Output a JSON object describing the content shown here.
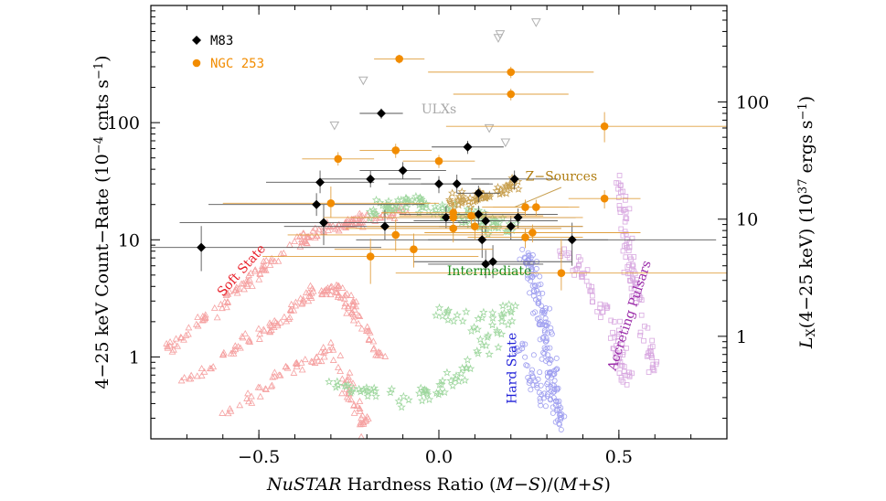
{
  "chart_data": {
    "type": "scatter",
    "xlabel_parts": [
      {
        "text": "NuSTAR",
        "italic": true
      },
      {
        "text": " Hardness Ratio (",
        "italic": false
      },
      {
        "text": "M",
        "italic": true
      },
      {
        "text": "−",
        "italic": false
      },
      {
        "text": "S",
        "italic": true
      },
      {
        "text": ")/(",
        "italic": false
      },
      {
        "text": "M",
        "italic": true
      },
      {
        "text": "+",
        "italic": false
      },
      {
        "text": "S",
        "italic": true
      },
      {
        "text": ")",
        "italic": false
      }
    ],
    "ylabel": "4−25 keV Count−Rate (10",
    "ylabel_exp1": "−4",
    "ylabel_mid": " cnts s",
    "ylabel_exp2": "−1",
    "ylabel_end": ")",
    "y2label_L": "L",
    "y2label_sub": "X",
    "y2label_mid": "(4−25 keV) (10",
    "y2label_exp1": "37",
    "y2label_mid2": " ergs s",
    "y2label_exp2": "−1",
    "y2label_end": ")",
    "xlim": [
      -0.8,
      0.8
    ],
    "ylim": [
      0.2,
      1000
    ],
    "yscale": "log",
    "x_ticks": [
      {
        "value": -0.5,
        "label": "−0.5"
      },
      {
        "value": 0.0,
        "label": "0.0"
      },
      {
        "value": 0.5,
        "label": "0.5"
      }
    ],
    "y_ticks": [
      {
        "value": 1,
        "label": "1"
      },
      {
        "value": 10,
        "label": "10"
      },
      {
        "value": 100,
        "label": "100"
      }
    ],
    "y2_ticks": [
      {
        "value": 1.5,
        "label": "1"
      },
      {
        "value": 15,
        "label": "10"
      },
      {
        "value": 150,
        "label": "100"
      }
    ],
    "legend": {
      "position": "top-left",
      "entries": [
        {
          "name": "M83",
          "marker": "diamond",
          "color": "#000000"
        },
        {
          "name": "NGC 253",
          "marker": "circle",
          "color": "#f28c00"
        }
      ]
    },
    "colors": {
      "m83": "#000000",
      "ngc253": "#f28c00",
      "ngc253_err": "#e0a040",
      "soft": "#f5a0a0",
      "intermediate": "#9fd79f",
      "hard": "#a0a0f0",
      "pulsars": "#d8a8e0",
      "zsources": "#c8a050",
      "ulx": "#b0b0b0"
    },
    "region_labels": [
      {
        "text": "Soft State",
        "x": -0.54,
        "y": 5.2,
        "rotate": -48,
        "color": "#e8202a"
      },
      {
        "text": "Intermediate",
        "x": 0.14,
        "y": 5.0,
        "rotate": 0,
        "color": "#1e8e1e"
      },
      {
        "text": "Hard State",
        "x": 0.215,
        "y": 0.8,
        "rotate": -90,
        "color": "#2020d8"
      },
      {
        "text": "Accreting Pulsars",
        "x": 0.54,
        "y": 2.2,
        "rotate": -72,
        "color": "#9a2aa8"
      },
      {
        "text": "Z−Sources",
        "x": 0.34,
        "y": 32,
        "rotate": 0,
        "color": "#b07d10"
      },
      {
        "text": "ULXs",
        "x": 0.0,
        "y": 120,
        "rotate": 0,
        "color": "#a8a8a8"
      }
    ],
    "zsource_pointer": {
      "x1": 0.34,
      "y1": 28,
      "x2": 0.21,
      "y2": 19
    },
    "ulx_points": [
      {
        "x": 0.27,
        "y": 720
      },
      {
        "x": 0.165,
        "y": 530
      },
      {
        "x": 0.17,
        "y": 570
      },
      {
        "x": -0.21,
        "y": 230
      },
      {
        "x": -0.29,
        "y": 95
      },
      {
        "x": 0.185,
        "y": 68
      },
      {
        "x": 0.14,
        "y": 90
      }
    ],
    "series": [
      {
        "name": "M83",
        "marker": "diamond",
        "points": [
          {
            "x": -0.66,
            "y": 8.6,
            "xerr": 0.5,
            "yerr": [
              3.2,
              4.5
            ]
          },
          {
            "x": -0.34,
            "y": 20,
            "xerr": 0.3,
            "yerr": [
              4,
              5
            ]
          },
          {
            "x": -0.33,
            "y": 31,
            "xerr": 0.15,
            "yerr": [
              6,
              8
            ]
          },
          {
            "x": -0.32,
            "y": 14,
            "xerr": 0.4,
            "yerr": [
              5,
              6
            ]
          },
          {
            "x": -0.19,
            "y": 33,
            "xerr": 0.14,
            "yerr": [
              5,
              6
            ]
          },
          {
            "x": -0.16,
            "y": 120,
            "xerr": 0.06,
            "yerr": [
              12,
              12
            ]
          },
          {
            "x": -0.15,
            "y": 13,
            "xerr": 0.28,
            "yerr": [
              3,
              5
            ]
          },
          {
            "x": -0.1,
            "y": 39,
            "xerr": 0.12,
            "yerr": [
              6,
              7
            ]
          },
          {
            "x": 0.0,
            "y": 30,
            "xerr": 0.14,
            "yerr": [
              5,
              5
            ]
          },
          {
            "x": 0.02,
            "y": 15.5,
            "xerr": 0.26,
            "yerr": [
              3,
              4
            ]
          },
          {
            "x": 0.05,
            "y": 30,
            "xerr": 0.1,
            "yerr": [
              5,
              6
            ]
          },
          {
            "x": 0.08,
            "y": 62,
            "xerr": 0.1,
            "yerr": [
              8,
              8
            ]
          },
          {
            "x": 0.11,
            "y": 16.5,
            "xerr": 0.22,
            "yerr": [
              3,
              3
            ]
          },
          {
            "x": 0.11,
            "y": 25,
            "xerr": 0.06,
            "yerr": [
              4,
              4
            ]
          },
          {
            "x": 0.12,
            "y": 10,
            "xerr": 0.35,
            "yerr": [
              3,
              3
            ]
          },
          {
            "x": 0.13,
            "y": 14.5,
            "xerr": 0.2,
            "yerr": [
              3,
              3
            ]
          },
          {
            "x": 0.13,
            "y": 6.2,
            "xerr": 0.16,
            "yerr": [
              1.5,
              2
            ]
          },
          {
            "x": 0.15,
            "y": 6.5,
            "xerr": 0.22,
            "yerr": [
              1.8,
              2.5
            ]
          },
          {
            "x": 0.2,
            "y": 13,
            "xerr": 0.2,
            "yerr": [
              3,
              3
            ]
          },
          {
            "x": 0.21,
            "y": 33,
            "xerr": 0.12,
            "yerr": [
              6,
              6
            ]
          },
          {
            "x": 0.22,
            "y": 15.5,
            "xerr": 0.16,
            "yerr": [
              3,
              3
            ]
          },
          {
            "x": 0.37,
            "y": 10,
            "xerr": 0.4,
            "yerr": [
              4,
              4
            ]
          }
        ]
      },
      {
        "name": "NGC 253",
        "marker": "circle",
        "points": [
          {
            "x": -0.3,
            "y": 20.5,
            "xerr": 0.3,
            "yerr": [
              5,
              8
            ]
          },
          {
            "x": -0.28,
            "y": 49,
            "xerr": 0.1,
            "yerr": [
              6,
              7
            ]
          },
          {
            "x": -0.19,
            "y": 7.2,
            "xerr": 0.3,
            "yerr": [
              3,
              3
            ]
          },
          {
            "x": -0.12,
            "y": 11,
            "xerr": 0.3,
            "yerr": [
              3,
              4
            ]
          },
          {
            "x": -0.12,
            "y": 58,
            "xerr": 0.1,
            "yerr": [
              8,
              8
            ]
          },
          {
            "x": -0.11,
            "y": 350,
            "xerr": 0.07,
            "yerr": [
              30,
              30
            ]
          },
          {
            "x": -0.07,
            "y": 8.3,
            "xerr": 0.22,
            "yerr": [
              2.5,
              3
            ]
          },
          {
            "x": 0.0,
            "y": 47,
            "xerr": 0.1,
            "yerr": [
              6,
              6
            ]
          },
          {
            "x": 0.04,
            "y": 17,
            "xerr": 0.2,
            "yerr": [
              3,
              4
            ]
          },
          {
            "x": 0.04,
            "y": 15.5,
            "xerr": 0.36,
            "yerr": [
              3,
              3
            ]
          },
          {
            "x": 0.04,
            "y": 12.5,
            "xerr": 0.3,
            "yerr": [
              3,
              3
            ]
          },
          {
            "x": 0.09,
            "y": 16,
            "xerr": 0.2,
            "yerr": [
              3,
              3
            ]
          },
          {
            "x": 0.1,
            "y": 13,
            "xerr": 0.3,
            "yerr": [
              3,
              3
            ]
          },
          {
            "x": 0.2,
            "y": 270,
            "xerr": 0.23,
            "yerr": [
              30,
              30
            ]
          },
          {
            "x": 0.2,
            "y": 175,
            "xerr": 0.16,
            "yerr": [
              20,
              20
            ]
          },
          {
            "x": 0.24,
            "y": 19,
            "xerr": 0.12,
            "yerr": [
              3,
              3
            ]
          },
          {
            "x": 0.24,
            "y": 10.5,
            "xerr": 0.16,
            "yerr": [
              2,
              2
            ]
          },
          {
            "x": 0.26,
            "y": 11.5,
            "xerr": 0.3,
            "yerr": [
              2,
              2
            ]
          },
          {
            "x": 0.27,
            "y": 19,
            "xerr": 0.12,
            "yerr": [
              3,
              3
            ]
          },
          {
            "x": 0.34,
            "y": 5.2,
            "xerr": 0.46,
            "yerr": [
              1.5,
              5
            ]
          },
          {
            "x": 0.46,
            "y": 22.5,
            "xerr": 0.1,
            "yerr": [
              4,
              4
            ]
          },
          {
            "x": 0.46,
            "y": 93,
            "xerr": 0.44,
            "yerr": [
              25,
              30
            ]
          }
        ]
      }
    ]
  }
}
